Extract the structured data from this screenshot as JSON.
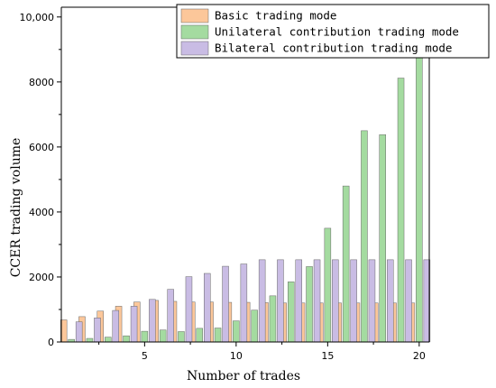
{
  "chart_data": {
    "type": "bar",
    "xlabel": "Number of trades",
    "ylabel": "CCER trading volume",
    "x_ticks": [
      "5",
      "10",
      "15",
      "20"
    ],
    "y_ticks": [
      "0",
      "2000",
      "4000",
      "6000",
      "8000",
      "10,000"
    ],
    "ylim": [
      0,
      10000
    ],
    "categories": [
      1,
      2,
      3,
      4,
      5,
      6,
      7,
      8,
      9,
      10,
      11,
      12,
      13,
      14,
      15,
      16,
      17,
      18,
      19,
      20
    ],
    "legend_position": "top-right",
    "series": [
      {
        "name": "Basic trading mode",
        "color": "#FCC79A",
        "values": [
          680,
          780,
          950,
          1100,
          1230,
          1280,
          1250,
          1230,
          1230,
          1220,
          1220,
          1210,
          1200,
          1200,
          1200,
          1200,
          1200,
          1200,
          1200,
          1200
        ]
      },
      {
        "name": "Unilateral contribution trading mode",
        "color": "#A4DBA0",
        "values": [
          80,
          110,
          150,
          190,
          330,
          370,
          320,
          420,
          430,
          650,
          980,
          1420,
          1850,
          2320,
          3500,
          4800,
          6500,
          6380,
          8120,
          9900
        ]
      },
      {
        "name": "Bilateral contribution trading mode",
        "color": "#C9BCE4",
        "values": [
          620,
          740,
          970,
          1100,
          1310,
          1620,
          2010,
          2110,
          2330,
          2400,
          2530,
          2530,
          2530,
          2530,
          2530,
          2530,
          2530,
          2530,
          2530,
          2530
        ]
      }
    ]
  }
}
